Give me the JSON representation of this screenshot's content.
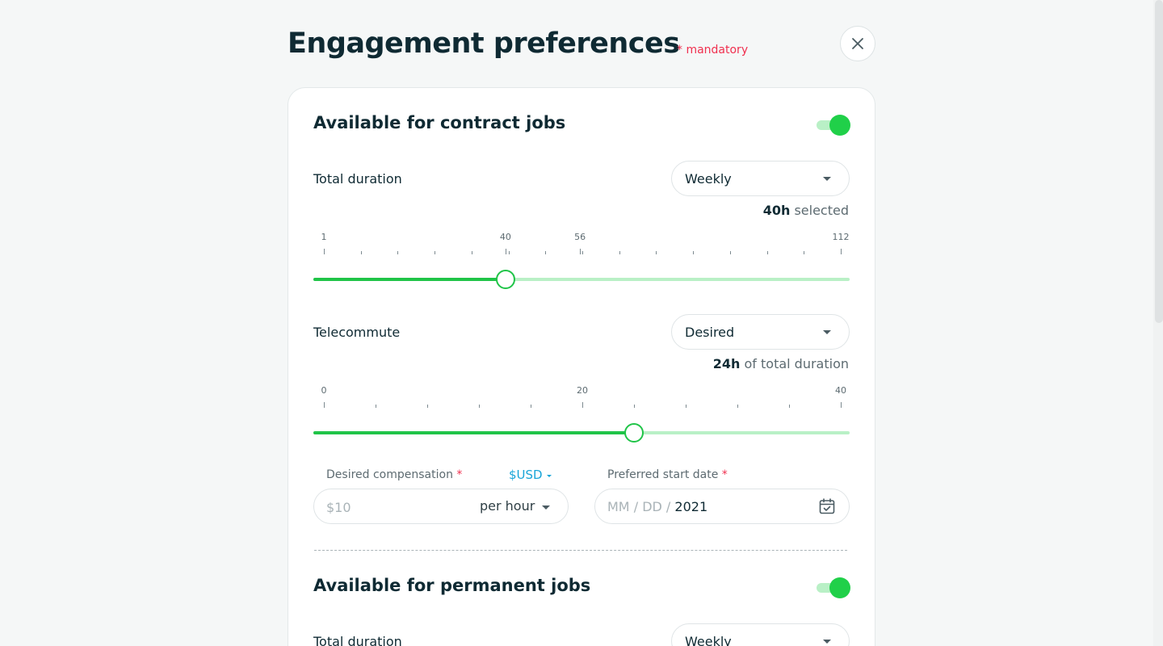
{
  "header": {
    "title": "Engagement preferences",
    "mandatory_note": "* mandatory"
  },
  "contract": {
    "title": "Available for contract jobs",
    "toggle_on": true,
    "duration": {
      "label": "Total duration",
      "period": "Weekly",
      "selected_value": "40h",
      "selected_suffix": " selected",
      "ticks": [
        "1",
        "40",
        "56",
        "112"
      ],
      "min": 1,
      "max": 112,
      "value": 40
    },
    "telecommute": {
      "label": "Telecommute",
      "mode": "Desired",
      "selected_value": "24h",
      "selected_suffix": " of total duration",
      "ticks": [
        "0",
        "20",
        "40"
      ],
      "min": 0,
      "max": 40,
      "value": 24
    },
    "compensation": {
      "label": "Desired compensation",
      "required_mark": "*",
      "currency": "$USD",
      "placeholder": "$10",
      "rate": "per hour"
    },
    "start_date": {
      "label": "Preferred start date",
      "required_mark": "*",
      "mm": "MM",
      "dd": "DD",
      "sep": "/",
      "year": "2021"
    }
  },
  "permanent": {
    "title": "Available for permanent jobs",
    "toggle_on": true,
    "duration": {
      "label": "Total duration",
      "period": "Weekly"
    }
  },
  "colors": {
    "accent_green": "#20d049",
    "track_light": "#b9f0c6",
    "required_red": "#f0304f",
    "link_blue": "#1aa5d8"
  },
  "icons": {
    "close": "close-icon",
    "calendar": "calendar-icon",
    "caret": "caret-down-icon"
  }
}
